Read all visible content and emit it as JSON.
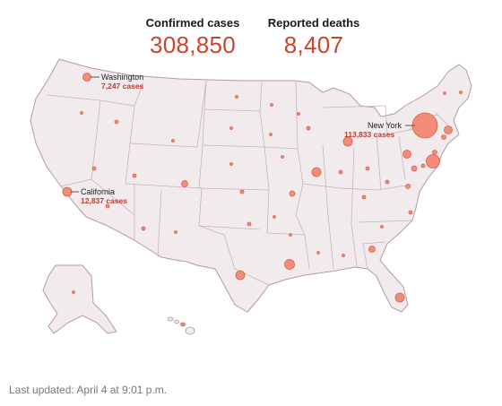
{
  "header": {
    "confirmed_label": "Confirmed cases",
    "confirmed_value": "308,850",
    "deaths_label": "Reported deaths",
    "deaths_value": "8,407"
  },
  "callouts": [
    {
      "state": "Washington",
      "count": "7,247 cases"
    },
    {
      "state": "California",
      "count": "12,837 cases"
    },
    {
      "state": "New York",
      "count": "113,833 cases"
    }
  ],
  "footer": {
    "updated": "Last updated: April 4 at 9:01 p.m."
  },
  "colors": {
    "land": "#f1ebee",
    "border": "#b59aa4",
    "bubble": "#f2836b",
    "bubble_stroke": "#d95f44",
    "accent": "#c9452c"
  }
}
